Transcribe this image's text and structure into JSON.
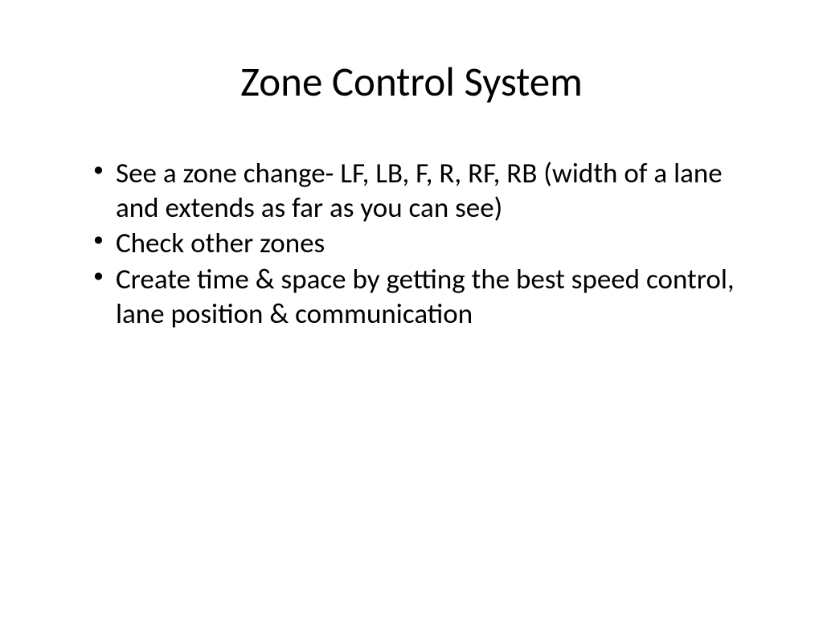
{
  "slide": {
    "title": "Zone Control System",
    "title_fontsize": 51,
    "title_color": "#000000",
    "background_color": "#ffffff",
    "bullets": [
      "See a zone change- LF, LB, F, R, RF, RB (width of a lane and extends as far as you can see)",
      "Check other zones",
      "Create time & space by getting the best speed control, lane position & communication"
    ],
    "bullet_fontsize": 35,
    "bullet_color": "#000000",
    "font_family": "Calibri"
  }
}
